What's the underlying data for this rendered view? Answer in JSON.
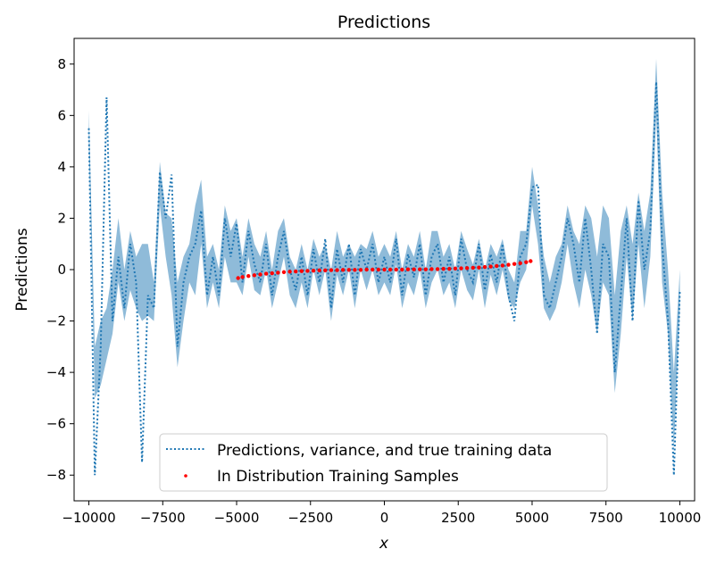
{
  "chart_data": {
    "type": "line",
    "title": "Predictions",
    "xlabel": "x",
    "ylabel": "Predictions",
    "xlim": [
      -10500,
      10500
    ],
    "ylim": [
      -9,
      9
    ],
    "xticks": [
      -10000,
      -7500,
      -5000,
      -2500,
      0,
      2500,
      5000,
      7500,
      10000
    ],
    "xtick_labels": [
      "−10000",
      "−7500",
      "−5000",
      "−2500",
      "0",
      "2500",
      "5000",
      "7500",
      "10000"
    ],
    "yticks": [
      -8,
      -6,
      -4,
      -2,
      0,
      2,
      4,
      6,
      8
    ],
    "ytick_labels": [
      "−8",
      "−6",
      "−4",
      "−2",
      "0",
      "2",
      "4",
      "6",
      "8"
    ],
    "grid": false,
    "legend_position": "lower center",
    "legend": [
      {
        "label": "Predictions, variance, and true training data",
        "style": "dotted-line"
      },
      {
        "label": "In Distribution Training Samples",
        "style": "point"
      }
    ],
    "colors": {
      "prediction": "#1f77b4",
      "band": "#1f77b4",
      "samples": "#ff0000"
    },
    "series": [
      {
        "name": "Predictions, variance, and true training data",
        "style": "dotted",
        "x": [
          -10000,
          -9800,
          -9600,
          -9400,
          -9200,
          -9000,
          -8800,
          -8600,
          -8400,
          -8200,
          -8000,
          -7800,
          -7600,
          -7400,
          -7200,
          -7000,
          -6800,
          -6600,
          -6400,
          -6200,
          -6000,
          -5800,
          -5600,
          -5400,
          -5200,
          -5000,
          -4800,
          -4600,
          -4400,
          -4200,
          -4000,
          -3800,
          -3600,
          -3400,
          -3200,
          -3000,
          -2800,
          -2600,
          -2400,
          -2200,
          -2000,
          -1800,
          -1600,
          -1400,
          -1200,
          -1000,
          -800,
          -600,
          -400,
          -200,
          0,
          200,
          400,
          600,
          800,
          1000,
          1200,
          1400,
          1600,
          1800,
          2000,
          2200,
          2400,
          2600,
          2800,
          3000,
          3200,
          3400,
          3600,
          3800,
          4000,
          4200,
          4400,
          4600,
          4800,
          5000,
          5200,
          5400,
          5600,
          5800,
          6000,
          6200,
          6400,
          6600,
          6800,
          7000,
          7200,
          7400,
          7600,
          7800,
          8000,
          8200,
          8400,
          8600,
          8800,
          9000,
          9200,
          9400,
          9600,
          9800,
          10000
        ],
        "y": [
          5.5,
          -8.0,
          -3.0,
          6.7,
          -2.0,
          0.5,
          -1.5,
          1.0,
          -0.5,
          -7.5,
          -1.0,
          -1.5,
          3.8,
          2.0,
          3.7,
          -3.0,
          -0.5,
          0.5,
          1.0,
          2.3,
          -1.0,
          0.5,
          -1.0,
          2.0,
          0.5,
          1.8,
          -0.5,
          1.5,
          0.2,
          -0.5,
          1.0,
          -1.0,
          0.5,
          1.5,
          0.0,
          -0.8,
          0.5,
          -1.0,
          0.8,
          -0.5,
          1.2,
          -1.5,
          0.8,
          -0.5,
          1.0,
          -1.0,
          0.8,
          0.0,
          1.0,
          -0.5,
          0.5,
          -0.5,
          1.2,
          -1.0,
          0.6,
          -0.3,
          1.0,
          -1.0,
          0.5,
          1.0,
          -0.5,
          0.5,
          -1.0,
          1.2,
          0.0,
          -0.5,
          1.0,
          -0.8,
          0.6,
          -0.5,
          1.0,
          -1.0,
          -2.0,
          0.5,
          1.0,
          3.2,
          3.3,
          -1.0,
          -1.5,
          -0.5,
          0.5,
          2.0,
          1.0,
          -0.5,
          2.0,
          0.0,
          -2.5,
          1.0,
          0.5,
          -4.0,
          -1.0,
          2.0,
          -2.0,
          2.7,
          0.0,
          1.5,
          7.3,
          1.0,
          -2.0,
          -8.0,
          -0.8
        ]
      },
      {
        "name": "In Distribution Training Samples",
        "style": "points",
        "x": [
          -4950,
          -4800,
          -4600,
          -4400,
          -4200,
          -4000,
          -3800,
          -3600,
          -3400,
          -3200,
          -3000,
          -2800,
          -2600,
          -2400,
          -2200,
          -2000,
          -1800,
          -1600,
          -1400,
          -1200,
          -1000,
          -800,
          -600,
          -400,
          -200,
          0,
          200,
          400,
          600,
          800,
          1000,
          1200,
          1400,
          1600,
          1800,
          2000,
          2200,
          2400,
          2600,
          2800,
          3000,
          3200,
          3400,
          3600,
          3800,
          4000,
          4200,
          4400,
          4600,
          4800,
          4950
        ],
        "y": [
          -0.33,
          -0.29,
          -0.25,
          -0.22,
          -0.19,
          -0.16,
          -0.14,
          -0.12,
          -0.1,
          -0.08,
          -0.07,
          -0.06,
          -0.05,
          -0.04,
          -0.03,
          -0.03,
          -0.02,
          -0.02,
          -0.01,
          -0.01,
          -0.01,
          -0.01,
          0.0,
          0.0,
          0.0,
          0.0,
          0.0,
          0.0,
          0.0,
          0.01,
          0.01,
          0.01,
          0.01,
          0.02,
          0.02,
          0.03,
          0.03,
          0.04,
          0.05,
          0.06,
          0.07,
          0.08,
          0.1,
          0.12,
          0.14,
          0.16,
          0.19,
          0.22,
          0.25,
          0.29,
          0.33
        ]
      }
    ],
    "band": {
      "name": "variance",
      "x": [
        -10000,
        -9800,
        -9600,
        -9400,
        -9200,
        -9000,
        -8800,
        -8600,
        -8400,
        -8200,
        -8000,
        -7800,
        -7600,
        -7400,
        -7200,
        -7000,
        -6800,
        -6600,
        -6400,
        -6200,
        -6000,
        -5800,
        -5600,
        -5400,
        -5200,
        -5000,
        -4800,
        -4600,
        -4400,
        -4200,
        -4000,
        -3800,
        -3600,
        -3400,
        -3200,
        -3000,
        -2800,
        -2600,
        -2400,
        -2200,
        -2000,
        -1800,
        -1600,
        -1400,
        -1200,
        -1000,
        -800,
        -600,
        -400,
        -200,
        0,
        200,
        400,
        600,
        800,
        1000,
        1200,
        1400,
        1600,
        1800,
        2000,
        2200,
        2400,
        2600,
        2800,
        3000,
        3200,
        3400,
        3600,
        3800,
        4000,
        4200,
        4400,
        4600,
        4800,
        5000,
        5200,
        5400,
        5600,
        5800,
        6000,
        6200,
        6400,
        6600,
        6800,
        7000,
        7200,
        7400,
        7600,
        7800,
        8000,
        8200,
        8400,
        8600,
        8800,
        9000,
        9200,
        9400,
        9600,
        9800,
        10000
      ],
      "lower": [
        4.8,
        -5.0,
        -4.5,
        -3.5,
        -2.5,
        -0.5,
        -2.0,
        -0.8,
        -1.5,
        -2.0,
        -1.8,
        -2.0,
        2.5,
        0.5,
        -1.0,
        -3.8,
        -2.0,
        -0.5,
        -1.0,
        1.0,
        -1.5,
        -0.5,
        -1.5,
        0.5,
        -0.5,
        -0.5,
        -1.0,
        0.5,
        -0.8,
        -1.0,
        0.0,
        -1.5,
        -0.5,
        0.5,
        -1.0,
        -1.5,
        -0.5,
        -1.5,
        0.0,
        -1.0,
        0.0,
        -2.0,
        -0.2,
        -1.0,
        0.0,
        -1.5,
        0.0,
        -0.8,
        0.0,
        -1.0,
        -0.5,
        -1.0,
        0.2,
        -1.5,
        -0.5,
        -1.0,
        0.0,
        -1.5,
        -0.5,
        0.0,
        -1.0,
        -0.5,
        -1.5,
        0.0,
        -0.8,
        -1.2,
        0.0,
        -1.5,
        -0.2,
        -1.0,
        0.0,
        -1.2,
        -1.5,
        -0.5,
        0.0,
        2.5,
        1.0,
        -1.5,
        -2.0,
        -1.5,
        -0.5,
        1.0,
        -0.5,
        -1.5,
        0.0,
        -1.0,
        -2.5,
        -0.5,
        -1.0,
        -4.8,
        -2.5,
        0.5,
        -2.0,
        1.0,
        -1.5,
        0.5,
        6.0,
        -0.5,
        -2.5,
        -7.0,
        -1.5
      ],
      "upper": [
        6.2,
        -3.0,
        -2.0,
        -1.5,
        0.0,
        2.0,
        0.0,
        1.5,
        0.5,
        1.0,
        1.0,
        -0.5,
        4.2,
        2.2,
        2.0,
        -0.5,
        0.5,
        1.0,
        2.5,
        3.5,
        0.5,
        1.0,
        0.0,
        2.5,
        1.5,
        2.0,
        0.5,
        2.0,
        1.0,
        0.5,
        1.5,
        0.0,
        1.5,
        2.0,
        0.5,
        0.0,
        1.0,
        0.0,
        1.2,
        0.5,
        1.0,
        0.0,
        1.5,
        0.5,
        1.0,
        0.5,
        1.0,
        0.8,
        1.5,
        0.5,
        1.0,
        0.5,
        1.5,
        0.0,
        1.0,
        0.5,
        1.5,
        0.0,
        1.5,
        1.5,
        0.5,
        1.0,
        0.0,
        1.5,
        0.8,
        0.2,
        1.2,
        0.0,
        1.0,
        0.5,
        1.2,
        0.0,
        -0.5,
        1.5,
        1.5,
        4.0,
        2.5,
        0.5,
        -0.5,
        0.5,
        1.0,
        2.5,
        1.5,
        1.0,
        2.5,
        2.0,
        0.5,
        2.5,
        2.0,
        -1.0,
        1.5,
        2.5,
        1.0,
        3.0,
        1.5,
        3.0,
        8.2,
        3.0,
        0.0,
        -4.0,
        0.0
      ]
    }
  }
}
